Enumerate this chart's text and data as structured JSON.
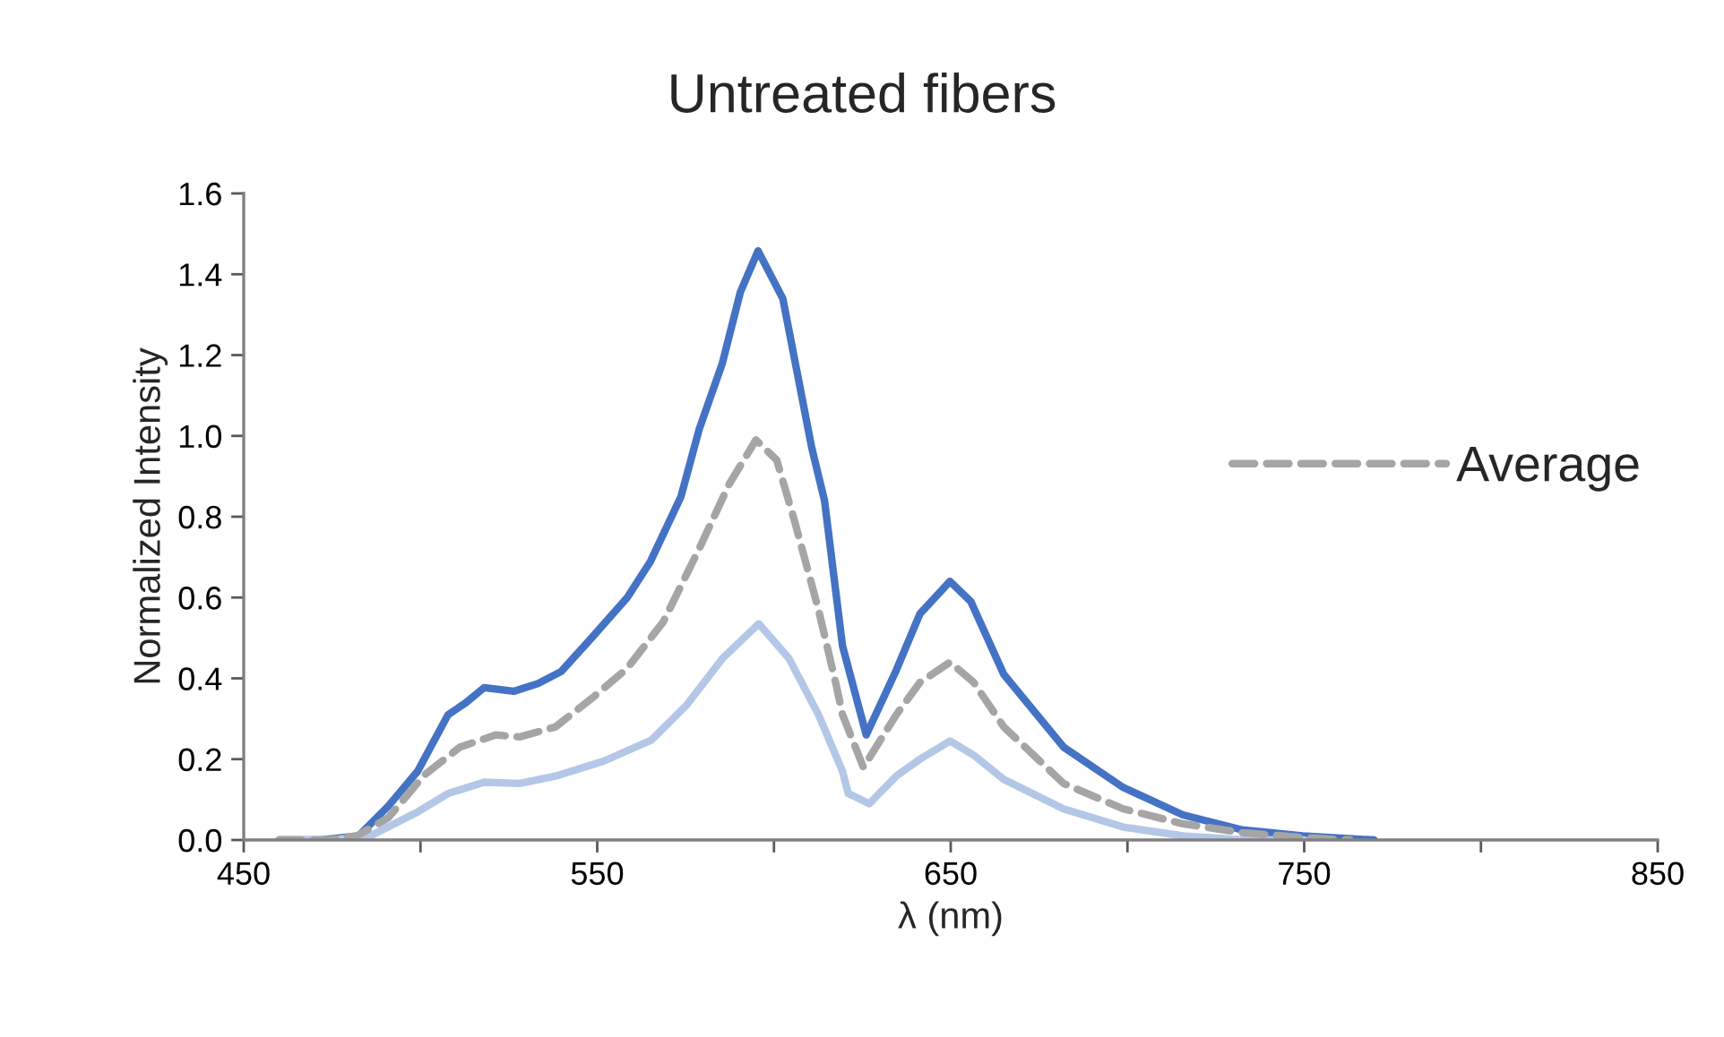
{
  "chart_data": {
    "type": "line",
    "title": "Untreated fibers",
    "xlabel": "λ (nm)",
    "ylabel": "Normalized Intensity",
    "xlim": [
      450,
      850
    ],
    "xticks": [
      450,
      {
        "value": 500,
        "label": null
      },
      550,
      {
        "value": 600,
        "label": null
      },
      650,
      {
        "value": 700,
        "label": null
      },
      750,
      {
        "value": 800,
        "label": null
      },
      850
    ],
    "ylim": [
      0,
      1.6
    ],
    "yticks": [
      {
        "value": 0,
        "label": "0.0"
      },
      {
        "value": 0.2,
        "label": "0.2"
      },
      {
        "value": 0.4,
        "label": "0.4"
      },
      {
        "value": 0.6,
        "label": "0.6"
      },
      {
        "value": 0.8,
        "label": "0.8"
      },
      {
        "value": 1.0,
        "label": "1.0"
      },
      {
        "value": 1.2,
        "label": "1.2"
      },
      {
        "value": 1.4,
        "label": "1.4"
      },
      {
        "value": 1.6,
        "label": "1.6"
      }
    ],
    "grid": false,
    "legend": "right",
    "marker": "none",
    "series": [
      {
        "color": "#4472c4",
        "line_style": "solid",
        "x": [
          460,
          472,
          482.5,
          490.9,
          499.2,
          507.8,
          512.9,
          518,
          526.4,
          533.2,
          539.8,
          548.4,
          558.5,
          565.1,
          573.7,
          578.8,
          585.4,
          590.5,
          595.5,
          602.5,
          610.7,
          614.3,
          619.4,
          626.1,
          634.6,
          641.3,
          649.8,
          655.7,
          665,
          681.9,
          698.8,
          715.7,
          732.5,
          749.5,
          769.8
        ],
        "values": [
          0,
          0,
          0.01,
          0.084,
          0.17,
          0.31,
          0.34,
          0.377,
          0.368,
          0.387,
          0.417,
          0.5,
          0.6,
          0.69,
          0.85,
          1.015,
          1.18,
          1.356,
          1.458,
          1.34,
          0.97,
          0.84,
          0.48,
          0.26,
          0.42,
          0.56,
          0.64,
          0.59,
          0.41,
          0.23,
          0.13,
          0.062,
          0.025,
          0.01,
          0
        ]
      },
      {
        "color": "#b4c7e7",
        "line_style": "solid",
        "x": [
          460,
          475,
          485.8,
          499.3,
          507.8,
          518,
          528,
          538.2,
          551.8,
          565.3,
          575.4,
          585.5,
          595.7,
          604.2,
          612.6,
          619.4,
          621,
          627,
          634.6,
          641.3,
          649.8,
          656.5,
          665,
          681.9,
          698.8,
          715.7,
          732.6,
          750
        ],
        "values": [
          0,
          0,
          0.01,
          0.07,
          0.115,
          0.143,
          0.14,
          0.158,
          0.195,
          0.247,
          0.335,
          0.45,
          0.535,
          0.45,
          0.31,
          0.17,
          0.115,
          0.09,
          0.158,
          0.2,
          0.245,
          0.21,
          0.15,
          0.077,
          0.032,
          0.01,
          0,
          0
        ]
      },
      {
        "name": "Average",
        "color": "#a5a5a5",
        "line_style": "dashed",
        "x": [
          460,
          474,
          482,
          490.9,
          501,
          511.2,
          521.3,
          528,
          538.2,
          548.4,
          558.5,
          568.7,
          578.8,
          587.3,
          594.9,
          600.8,
          605.8,
          612.6,
          617.7,
          619.4,
          625.3,
          634.6,
          641.3,
          649.8,
          656.5,
          665,
          681.9,
          698.8,
          715.7,
          732.6,
          749.5,
          763
        ],
        "values": [
          0,
          0,
          0.01,
          0.055,
          0.16,
          0.23,
          0.26,
          0.255,
          0.28,
          0.35,
          0.425,
          0.54,
          0.72,
          0.88,
          0.99,
          0.94,
          0.79,
          0.57,
          0.38,
          0.31,
          0.18,
          0.31,
          0.39,
          0.44,
          0.39,
          0.28,
          0.14,
          0.077,
          0.04,
          0.018,
          0.006,
          0
        ]
      }
    ]
  }
}
